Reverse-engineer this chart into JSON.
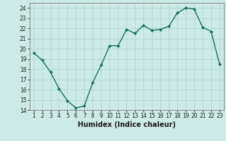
{
  "x": [
    1,
    2,
    3,
    4,
    5,
    6,
    7,
    8,
    9,
    10,
    11,
    12,
    13,
    14,
    15,
    16,
    17,
    18,
    19,
    20,
    21,
    22,
    23
  ],
  "y": [
    19.6,
    18.9,
    17.7,
    16.1,
    14.9,
    14.2,
    14.4,
    16.7,
    18.4,
    20.3,
    20.3,
    21.9,
    21.5,
    22.3,
    21.8,
    21.9,
    22.2,
    23.5,
    24.0,
    23.9,
    22.1,
    21.7,
    18.5
  ],
  "line_color": "#1a6e63",
  "marker": "D",
  "marker_size": 2.0,
  "bg_color": "#cceae6",
  "grid_color": "#aad4cf",
  "xlabel": "Humidex (Indice chaleur)",
  "ylim": [
    14,
    24.5
  ],
  "xlim": [
    0.5,
    23.5
  ],
  "yticks": [
    14,
    15,
    16,
    17,
    18,
    19,
    20,
    21,
    22,
    23,
    24
  ],
  "xticks": [
    1,
    2,
    3,
    4,
    5,
    6,
    7,
    8,
    9,
    10,
    11,
    12,
    13,
    14,
    15,
    16,
    17,
    18,
    19,
    20,
    21,
    22,
    23
  ],
  "tick_fontsize": 5.5,
  "xlabel_fontsize": 7,
  "line_width": 1.0
}
